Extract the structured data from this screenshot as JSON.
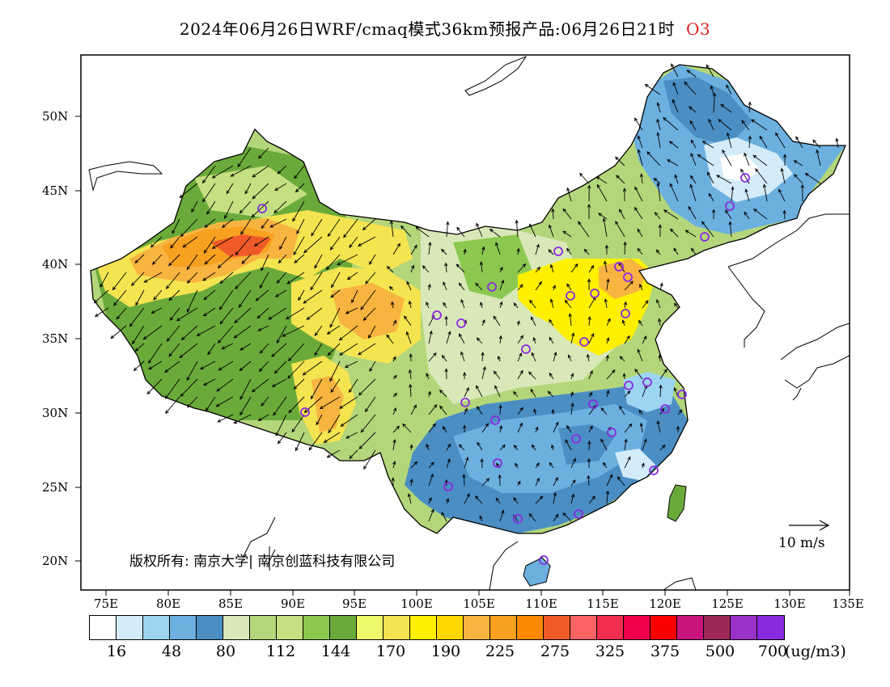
{
  "title": {
    "text": "2024年06月26日WRF/cmaq模式36km预报产品:06月26日21时",
    "species": "O3"
  },
  "axes": {
    "lat_labels": [
      "50N",
      "45N",
      "40N",
      "35N",
      "30N",
      "25N",
      "20N"
    ],
    "lon_labels": [
      "75E",
      "80E",
      "85E",
      "90E",
      "95E",
      "100E",
      "105E",
      "110E",
      "115E",
      "120E",
      "125E",
      "130E",
      "135E"
    ]
  },
  "legend": {
    "colors": [
      "#ffffff",
      "#d4ecfa",
      "#9cd4f2",
      "#6cb0e0",
      "#4a8ec4",
      "#d9e8b8",
      "#b4d67a",
      "#c4e080",
      "#8cc850",
      "#6aaa3a",
      "#eef86a",
      "#f4e450",
      "#fff000",
      "#fcd800",
      "#f8b440",
      "#f8a020",
      "#fa8a00",
      "#f05a28",
      "#fc6464",
      "#f22e50",
      "#f0004a",
      "#fa0000",
      "#c8147c",
      "#a02858",
      "#9a32c8",
      "#8a2ae0"
    ],
    "labels": [
      "16",
      "48",
      "80",
      "112",
      "144",
      "170",
      "190",
      "225",
      "275",
      "325",
      "375",
      "500",
      "700"
    ],
    "unit": "(ug/m3)"
  },
  "scale_label": "10 m/s",
  "copyright": "版权所有: 南京大学| 南京创蓝科技有限公司"
}
